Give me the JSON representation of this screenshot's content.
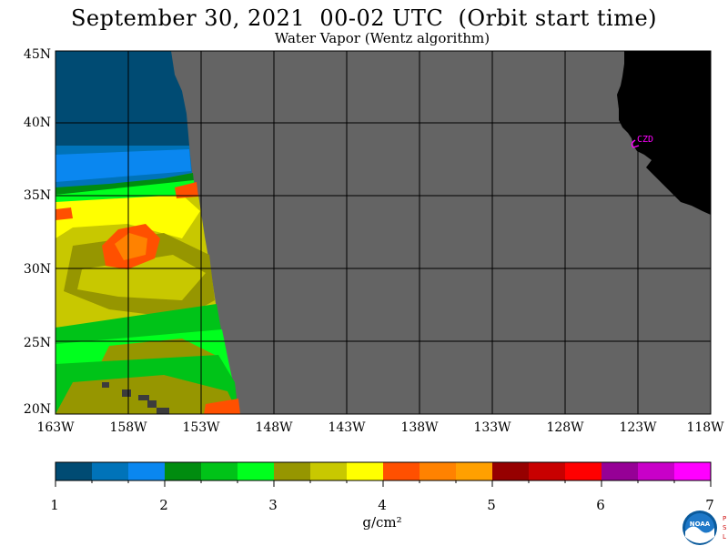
{
  "title": "September 30, 2021  00-02 UTC  (Orbit start time)",
  "subtitle": "Water Vapor (Wentz algorithm)",
  "lat_labels": [
    "45N",
    "40N",
    "35N",
    "30N",
    "25N",
    "20N"
  ],
  "lon_labels": [
    "163W",
    "158W",
    "153W",
    "148W",
    "143W",
    "138W",
    "133W",
    "128W",
    "123W",
    "118W"
  ],
  "station_label": "CZD",
  "colorbar": {
    "tick_labels": [
      "1",
      "2",
      "3",
      "4",
      "5",
      "6",
      "7"
    ],
    "units": "g/cm²",
    "colors": [
      "#004b73",
      "#0073b9",
      "#0a87f0",
      "#008c0f",
      "#00c318",
      "#00ff1e",
      "#969600",
      "#c8c800",
      "#ffff00",
      "#ff5000",
      "#ff8200",
      "#ffa000",
      "#960000",
      "#c80000",
      "#ff0000",
      "#960096",
      "#c800c8",
      "#ff00ff"
    ]
  },
  "map_colors": {
    "no_data": "#646464",
    "land": "#000000",
    "grid": "#000000",
    "station": "#ff00ff"
  },
  "logo": {
    "text": "NOAA",
    "side_letters": "PSL"
  }
}
